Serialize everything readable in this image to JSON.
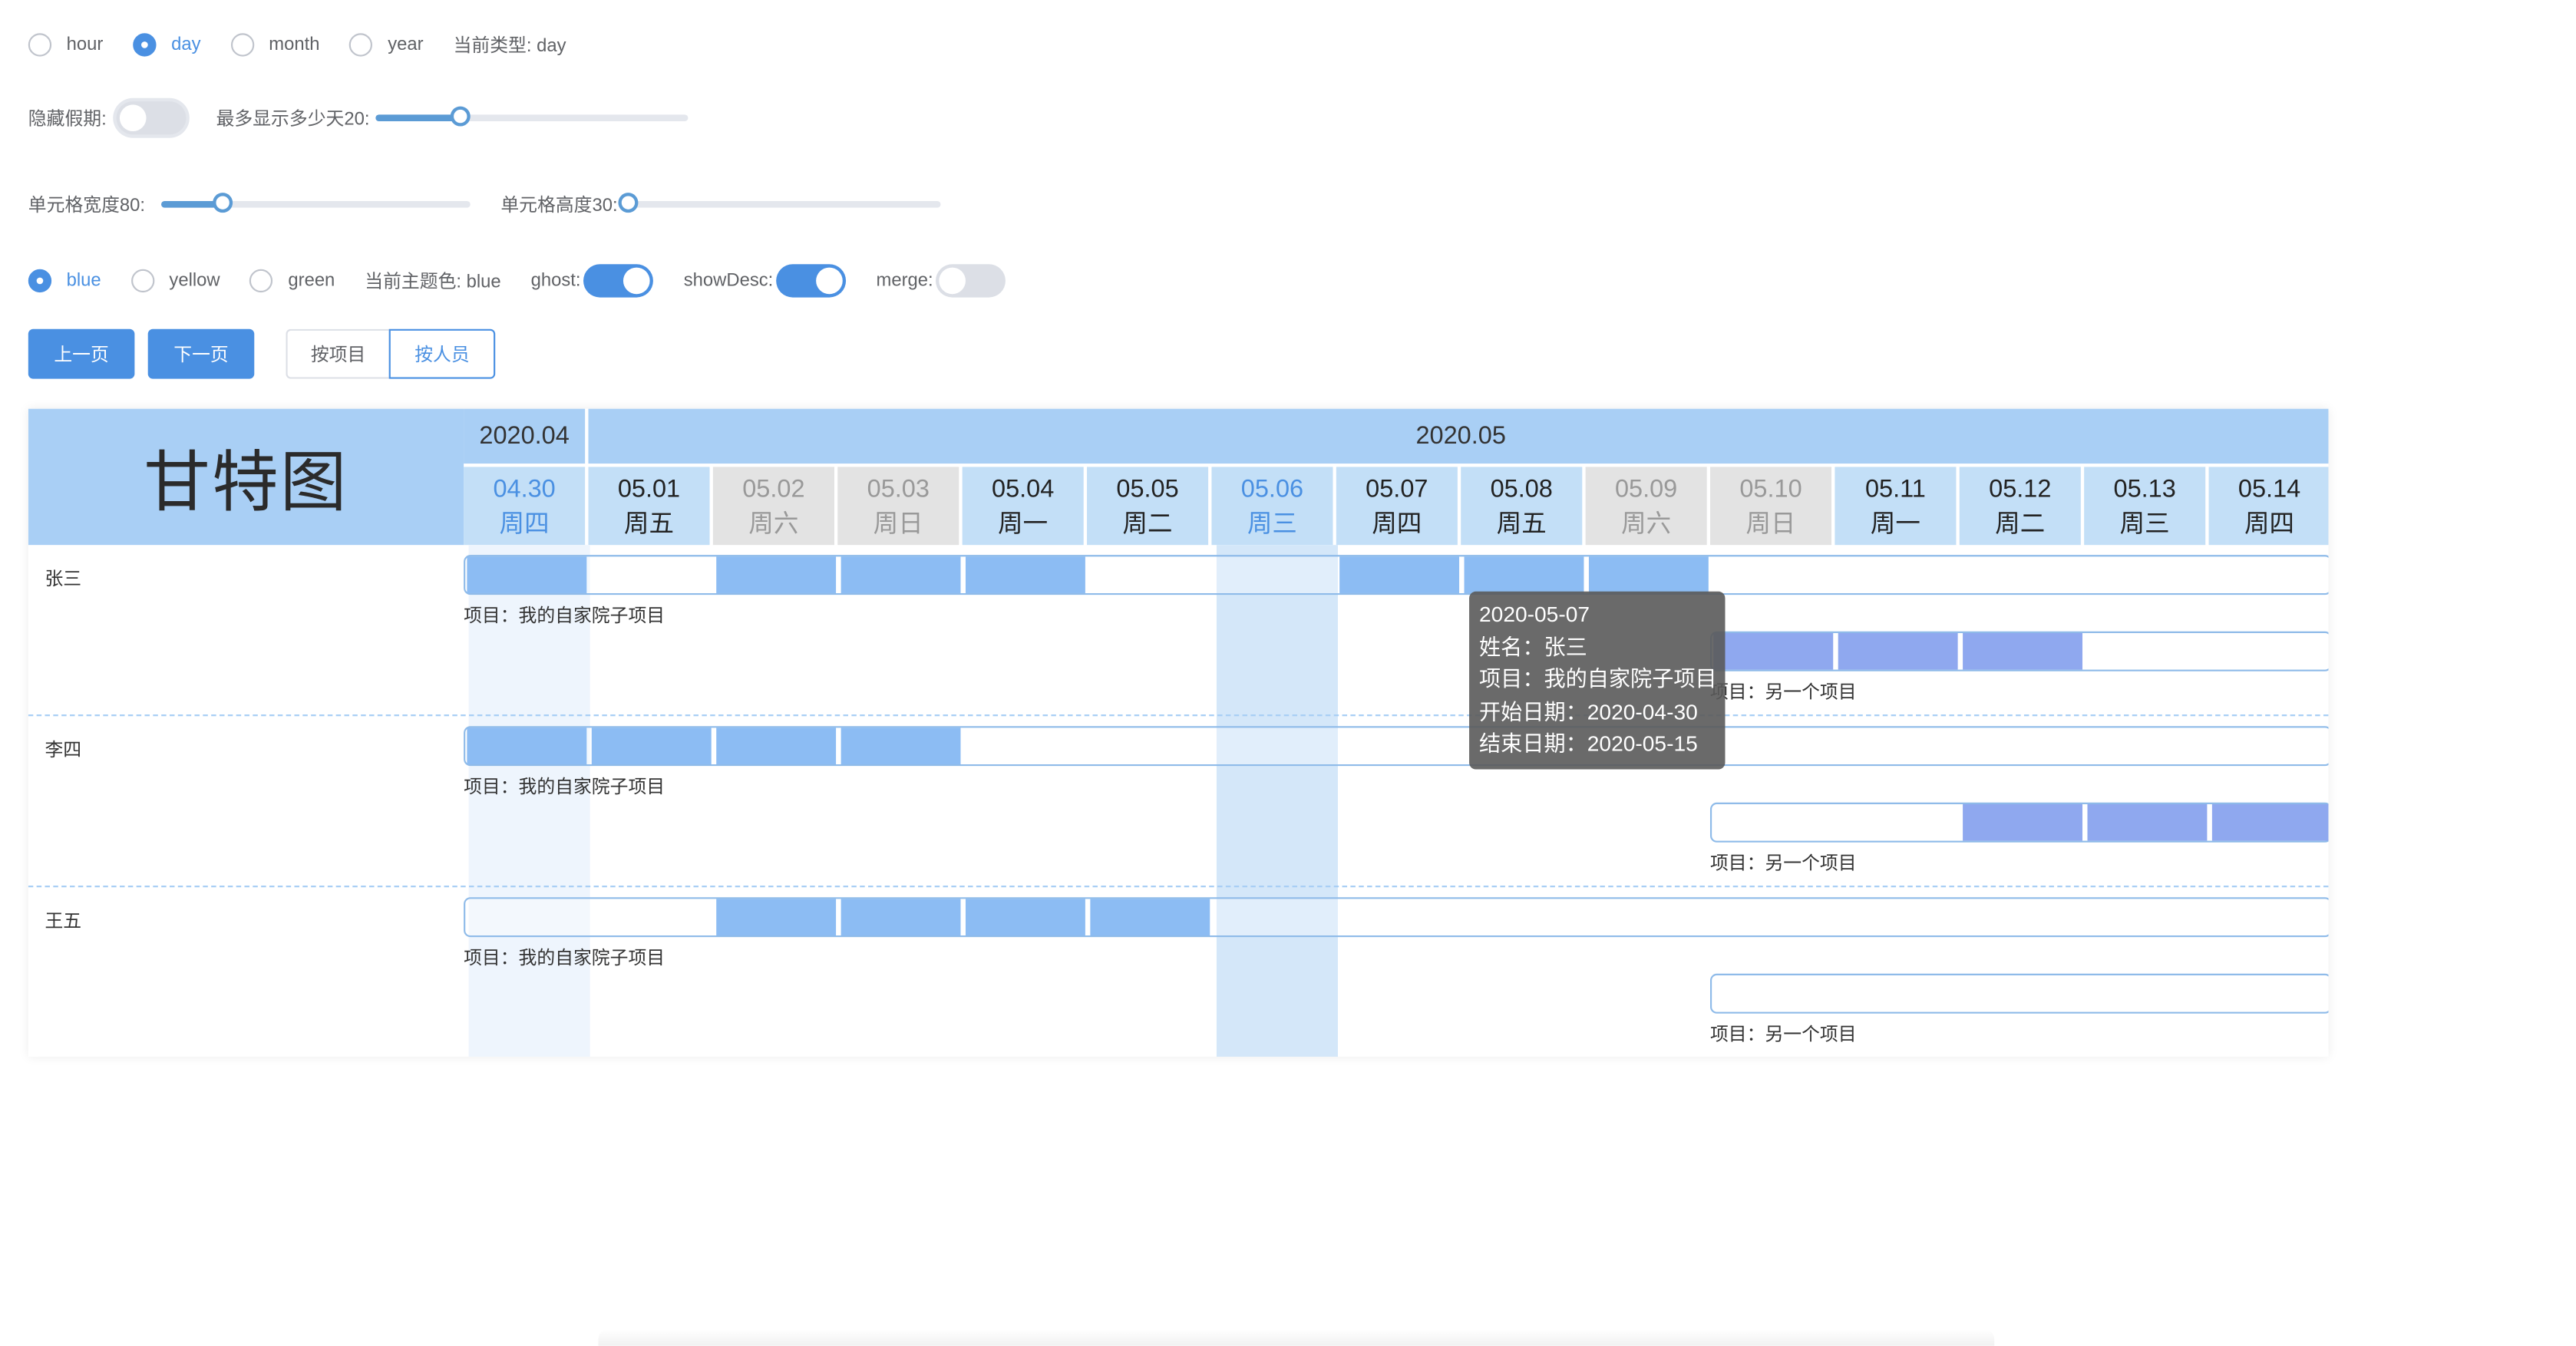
{
  "controls": {
    "type_options": [
      "hour",
      "day",
      "month",
      "year"
    ],
    "type_selected": "day",
    "current_type_label": "当前类型: day",
    "hide_holiday_label": "隐藏假期:",
    "max_days_label": "最多显示多少天20:",
    "max_days_value": 20,
    "max_days_fraction": 0.27,
    "cell_width_label": "单元格宽度80:",
    "cell_width_value": 80,
    "cell_width_fraction": 0.2,
    "cell_height_label": "单元格高度30:",
    "cell_height_value": 30,
    "cell_height_fraction": 0.0,
    "theme_options": [
      "blue",
      "yellow",
      "green"
    ],
    "theme_selected": "blue",
    "current_theme_label": "当前主题色: blue",
    "ghost_label": "ghost:",
    "ghost_on": true,
    "show_desc_label": "showDesc:",
    "show_desc_on": true,
    "merge_label": "merge:",
    "merge_on": false,
    "hide_holiday_on": false,
    "prev_page": "上一页",
    "next_page": "下一页",
    "group_by_project": "按项目",
    "group_by_person": "按人员",
    "group_selected": "按人员"
  },
  "gantt": {
    "title": "甘特图",
    "months": [
      {
        "label": "2020.04",
        "span": 1
      },
      {
        "label": "2020.05",
        "span": 14
      }
    ],
    "days": [
      {
        "date": "04.30",
        "weekday": "周四",
        "kind": "today"
      },
      {
        "date": "05.01",
        "weekday": "周五",
        "kind": "normal"
      },
      {
        "date": "05.02",
        "weekday": "周六",
        "kind": "weekend"
      },
      {
        "date": "05.03",
        "weekday": "周日",
        "kind": "weekend"
      },
      {
        "date": "05.04",
        "weekday": "周一",
        "kind": "normal"
      },
      {
        "date": "05.05",
        "weekday": "周二",
        "kind": "normal"
      },
      {
        "date": "05.06",
        "weekday": "周三",
        "kind": "today"
      },
      {
        "date": "05.07",
        "weekday": "周四",
        "kind": "normal"
      },
      {
        "date": "05.08",
        "weekday": "周五",
        "kind": "normal"
      },
      {
        "date": "05.09",
        "weekday": "周六",
        "kind": "weekend"
      },
      {
        "date": "05.10",
        "weekday": "周日",
        "kind": "weekend"
      },
      {
        "date": "05.11",
        "weekday": "周一",
        "kind": "normal"
      },
      {
        "date": "05.12",
        "weekday": "周二",
        "kind": "normal"
      },
      {
        "date": "05.13",
        "weekday": "周三",
        "kind": "normal"
      },
      {
        "date": "05.14",
        "weekday": "周四",
        "kind": "normal"
      }
    ],
    "people": [
      {
        "name": "张三",
        "tasks": [
          {
            "desc": "项目：我的自家院子项目",
            "start": 0,
            "filled": [
              0,
              2,
              3,
              4,
              7,
              8,
              9
            ],
            "alt": false
          },
          {
            "desc": "项目：另一个项目",
            "start": 10,
            "filled": [
              10,
              11,
              12
            ],
            "alt": true
          }
        ]
      },
      {
        "name": "李四",
        "tasks": [
          {
            "desc": "项目：我的自家院子项目",
            "start": 0,
            "filled": [
              0,
              1,
              2,
              3
            ],
            "alt": false
          },
          {
            "desc": "项目：另一个项目",
            "start": 10,
            "filled": [
              12,
              13,
              14
            ],
            "alt": true
          }
        ]
      },
      {
        "name": "王五",
        "tasks": [
          {
            "desc": "项目：我的自家院子项目",
            "start": 0,
            "filled": [
              2,
              3,
              4,
              5
            ],
            "alt": false
          },
          {
            "desc": "项目：另一个项目",
            "start": 10,
            "filled": [],
            "alt": false
          }
        ]
      }
    ],
    "tooltip": [
      "2020-05-07",
      "姓名：张三",
      "项目：我的自家院子项目",
      "开始日期：2020-04-30",
      "结束日期：2020-05-15"
    ]
  }
}
